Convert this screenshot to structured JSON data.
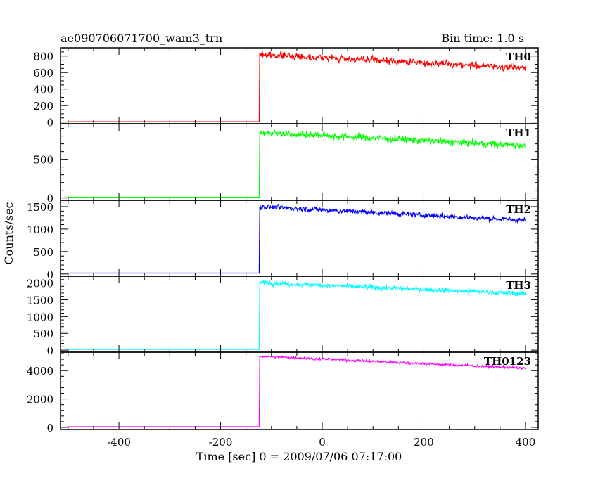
{
  "chart_data": {
    "type": "line",
    "title": "ae090706071700_wam3_trn",
    "bin_time_label": "Bin time: 1.0 s",
    "xlabel": "Time [sec] 0 = 2009/07/06 07:17:00",
    "ylabel": "Counts/sec",
    "xlim": [
      -515,
      425
    ],
    "x_ticks": [
      -400,
      -200,
      0,
      200,
      400
    ],
    "trigger_time": -123,
    "noise_seed": 7,
    "panels": [
      {
        "name": "TH0",
        "color": "#ff0000",
        "ylim": [
          -20,
          900
        ],
        "y_ticks": [
          0,
          200,
          400,
          600,
          800
        ],
        "pre_level": 5,
        "post_start": 820,
        "post_end": 655,
        "noise": 32
      },
      {
        "name": "TH1",
        "color": "#00ff00",
        "ylim": [
          -30,
          960
        ],
        "y_ticks": [
          0,
          500
        ],
        "pre_level": 10,
        "post_start": 850,
        "post_end": 675,
        "noise": 35
      },
      {
        "name": "TH2",
        "color": "#0000ff",
        "ylim": [
          -50,
          1640
        ],
        "y_ticks": [
          0,
          500,
          1000,
          1500
        ],
        "pre_level": 20,
        "post_start": 1500,
        "post_end": 1195,
        "noise": 45
      },
      {
        "name": "TH3",
        "color": "#00ffff",
        "ylim": [
          -60,
          2200
        ],
        "y_ticks": [
          0,
          500,
          1000,
          1500,
          2000
        ],
        "pre_level": 20,
        "post_start": 2010,
        "post_end": 1680,
        "noise": 55
      },
      {
        "name": "TH0123",
        "color": "#ff00ff",
        "ylim": [
          -150,
          5300
        ],
        "y_ticks": [
          0,
          2000,
          4000
        ],
        "pre_level": 50,
        "post_start": 5020,
        "post_end": 4170,
        "noise": 75
      }
    ]
  }
}
